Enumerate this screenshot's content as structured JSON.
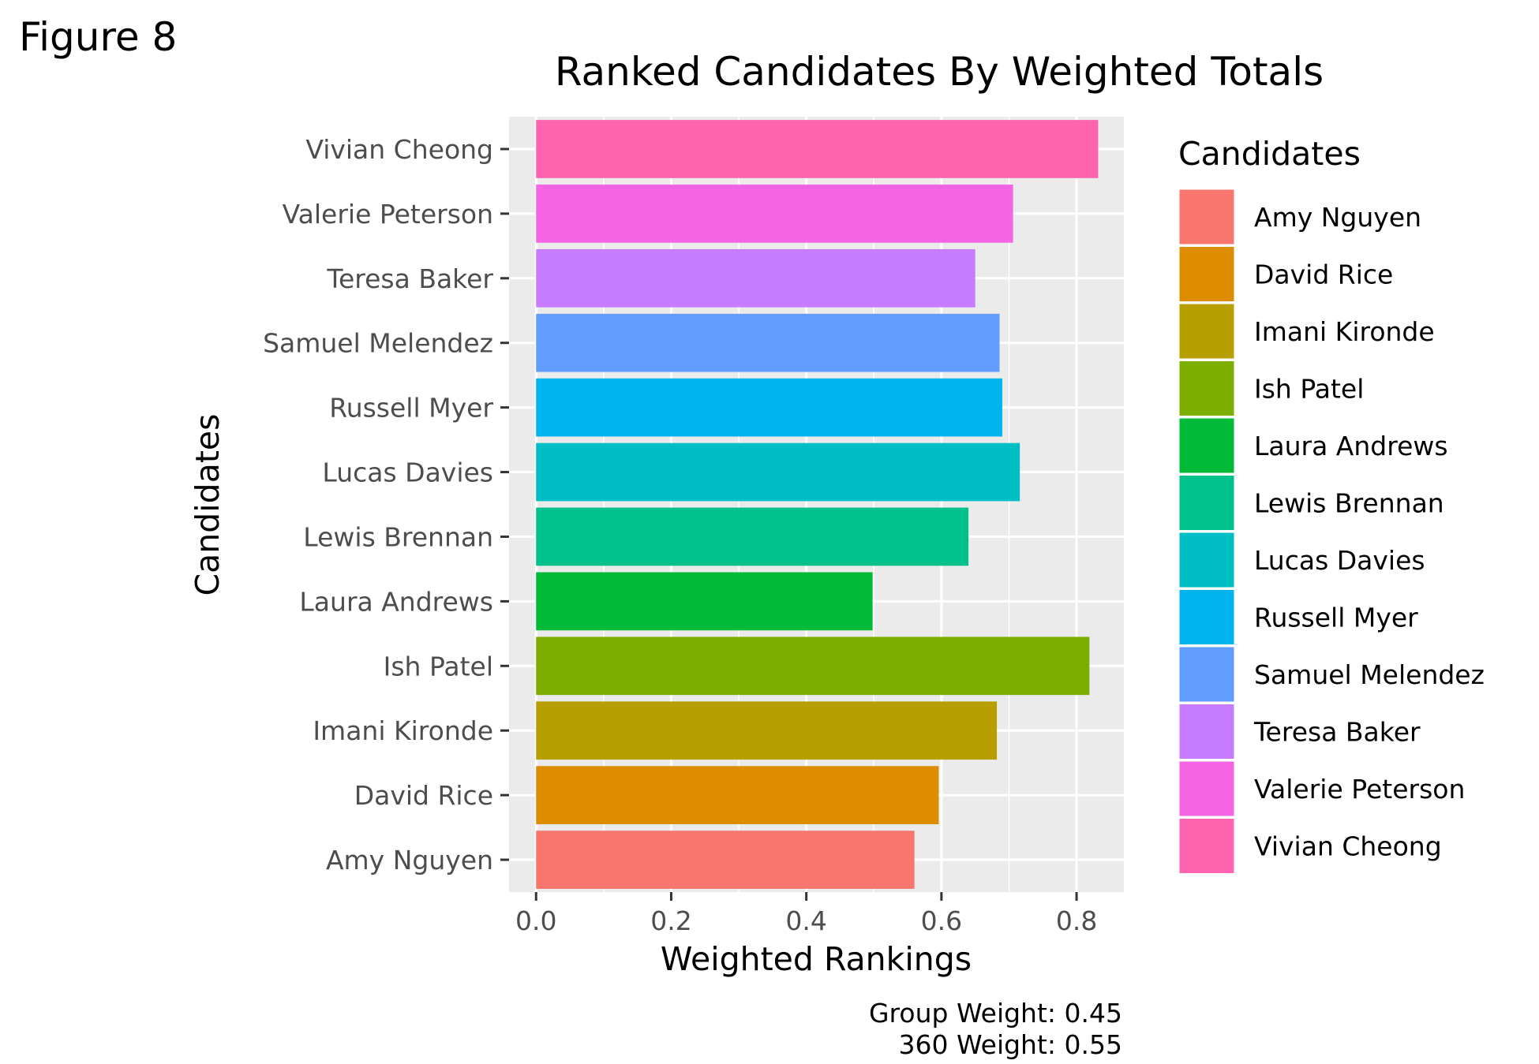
{
  "figure_label": "Figure 8",
  "chart_data": {
    "type": "bar",
    "orientation": "horizontal",
    "title": "Ranked Candidates By Weighted Totals",
    "xlabel": "Weighted Rankings",
    "ylabel": "Candidates",
    "xlim": [
      -0.04,
      0.87
    ],
    "xticks": [
      "0.0",
      "0.2",
      "0.4",
      "0.6",
      "0.8"
    ],
    "xtick_values": [
      0,
      0.2,
      0.4,
      0.6,
      0.8
    ],
    "grid": true,
    "legend_title": "Candidates",
    "legend_position": "right",
    "categories": [
      "Amy Nguyen",
      "David Rice",
      "Imani Kironde",
      "Ish Patel",
      "Laura Andrews",
      "Lewis Brennan",
      "Lucas Davies",
      "Russell Myer",
      "Samuel Melendez",
      "Teresa Baker",
      "Valerie Peterson",
      "Vivian Cheong"
    ],
    "values": [
      0.56,
      0.596,
      0.682,
      0.819,
      0.498,
      0.64,
      0.716,
      0.69,
      0.686,
      0.65,
      0.706,
      0.832
    ],
    "colors": [
      "#F8766D",
      "#DE8C00",
      "#B79F00",
      "#7CAE00",
      "#00BA38",
      "#00C08B",
      "#00BFC4",
      "#00B4F0",
      "#619CFF",
      "#C77CFF",
      "#F564E3",
      "#FF64B0"
    ]
  },
  "caption": {
    "line1": "Group Weight: 0.45",
    "line2": "360 Weight: 0.55"
  }
}
